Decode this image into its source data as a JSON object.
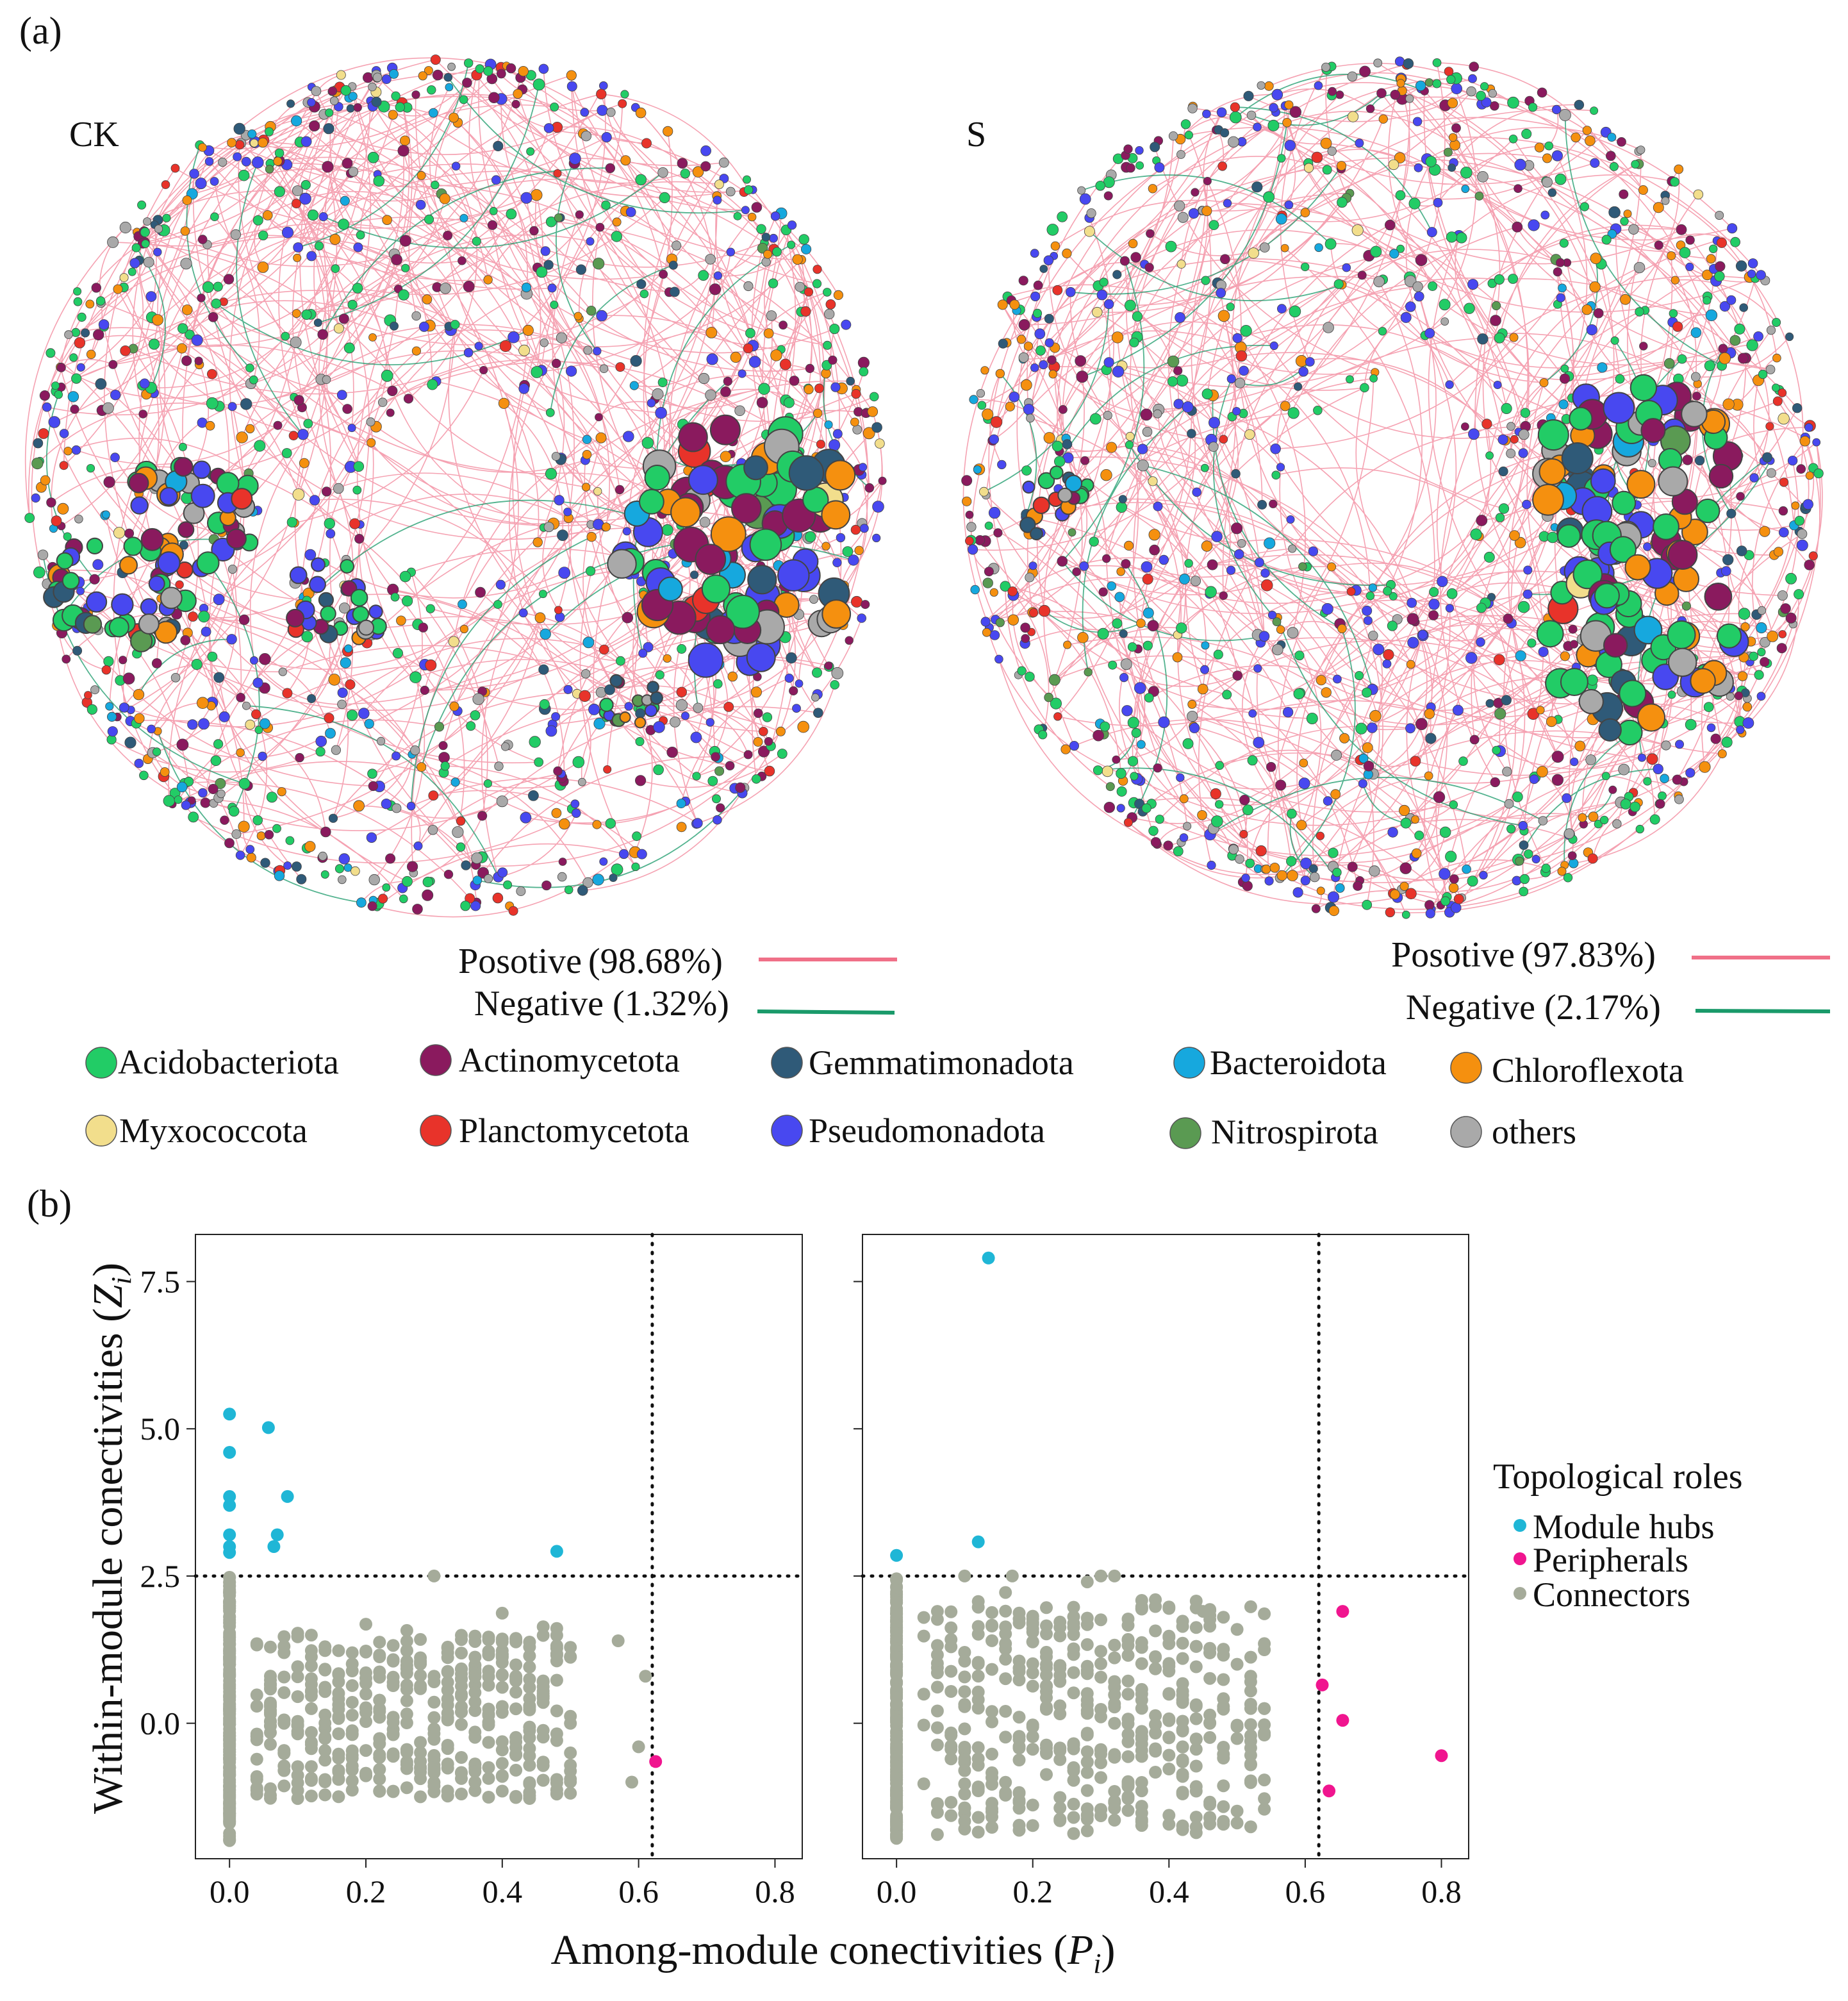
{
  "panel_a": {
    "label": "(a)",
    "networks": [
      {
        "title": "CK",
        "positive_label": "Posotive",
        "positive_value": "(98.68%)",
        "negative_label": "Negative",
        "negative_value": "(1.32%)"
      },
      {
        "title": "S",
        "positive_label": "Posotive",
        "positive_value": "(97.83%)",
        "negative_label": "Negative",
        "negative_value": "(2.17%)"
      }
    ],
    "edge_colors": {
      "positive": "#f07088",
      "negative": "#1a9a6a"
    },
    "phyla": [
      {
        "name": "Acidobacteriota",
        "color": "#22cc66"
      },
      {
        "name": "Actinomycetota",
        "color": "#8a1a5e"
      },
      {
        "name": "Gemmatimonadota",
        "color": "#2f5a78"
      },
      {
        "name": "Bacteroidota",
        "color": "#16a8de"
      },
      {
        "name": "Chloroflexota",
        "color": "#f5900f"
      },
      {
        "name": "Myxococcota",
        "color": "#f2de8c"
      },
      {
        "name": "Planctomycetota",
        "color": "#e8332a"
      },
      {
        "name": "Pseudomonadota",
        "color": "#4848f0"
      },
      {
        "name": "Nitrospirota",
        "color": "#5a9a52"
      },
      {
        "name": "others",
        "color": "#a9a9a9"
      }
    ]
  },
  "panel_b": {
    "label": "(b)",
    "xlabel_main": "Among-module conectivities (",
    "xlabel_var": "P",
    "xlabel_sub": "i",
    "xlabel_end": ")",
    "ylabel_main": "Within-module conectivities (",
    "ylabel_var": "Z",
    "ylabel_sub": "i",
    "ylabel_end": ")",
    "legend": {
      "title": "Topological roles",
      "items": [
        {
          "label": "Module hubs",
          "color": "#1fb6d6"
        },
        {
          "label": "Peripherals",
          "color": "#f0158f"
        },
        {
          "label": "Connectors",
          "color": "#a5ab9a"
        }
      ]
    }
  },
  "chart_data": [
    {
      "type": "scatter",
      "title": "CK",
      "xlim": [
        -0.05,
        0.84
      ],
      "ylim": [
        -2.3,
        8.3
      ],
      "xticks": [
        0.0,
        0.2,
        0.4,
        0.6,
        0.8
      ],
      "xtick_labels": [
        "0.0",
        "0.2",
        "0.4",
        "0.6",
        "0.8"
      ],
      "yticks": [
        0.0,
        2.5,
        5.0,
        7.5
      ],
      "ytick_labels": [
        "0.0",
        "2.5",
        "5.0",
        "7.5"
      ],
      "thresholds": {
        "x": 0.62,
        "y": 2.5
      },
      "series": [
        {
          "name": "Module hubs",
          "points": [
            [
              0,
              5.25
            ],
            [
              0,
              4.6
            ],
            [
              0,
              3.85
            ],
            [
              0,
              3.7
            ],
            [
              0,
              3.2
            ],
            [
              0,
              3.0
            ],
            [
              0,
              2.9
            ],
            [
              0.057,
              5.02
            ],
            [
              0.085,
              3.85
            ],
            [
              0.07,
              3.2
            ],
            [
              0.065,
              3.0
            ],
            [
              0.48,
              2.92
            ]
          ]
        },
        {
          "name": "Peripherals",
          "points": [
            [
              0.625,
              -0.65
            ]
          ]
        },
        {
          "name": "Connectors",
          "note": "approx. 700 nodes: dense column at Pi = 0 from Zi -2.0 to 2.5; spread 0.05-0.5, Zi -1.5 to 2.0; outliers [0.3, 2.5], [0.57, 1.4], [0.61, 0.8], [0.6, -0.4], [0.59, -1.0]"
        }
      ]
    },
    {
      "type": "scatter",
      "title": "S",
      "xlim": [
        -0.05,
        0.84
      ],
      "ylim": [
        -2.3,
        8.3
      ],
      "xticks": [
        0.0,
        0.2,
        0.4,
        0.6,
        0.8
      ],
      "xtick_labels": [
        "0.0",
        "0.2",
        "0.4",
        "0.6",
        "0.8"
      ],
      "yticks": [
        0.0,
        2.5,
        5.0,
        7.5
      ],
      "ytick_labels": [
        "",
        "",
        "",
        ""
      ],
      "thresholds": {
        "x": 0.62,
        "y": 2.5
      },
      "series": [
        {
          "name": "Module hubs",
          "points": [
            [
              0.135,
              7.9
            ],
            [
              0.12,
              3.08
            ],
            [
              0,
              2.85
            ]
          ]
        },
        {
          "name": "Peripherals",
          "points": [
            [
              0.655,
              1.9
            ],
            [
              0.625,
              0.65
            ],
            [
              0.655,
              0.05
            ],
            [
              0.8,
              -0.55
            ],
            [
              0.635,
              -1.15
            ]
          ]
        },
        {
          "name": "Connectors",
          "note": "approx. 700 nodes: dense column at Pi = 0 from Zi -2.0 to 2.5; spread 0.05-0.54, Zi -2.0 to 2.5"
        }
      ]
    }
  ]
}
